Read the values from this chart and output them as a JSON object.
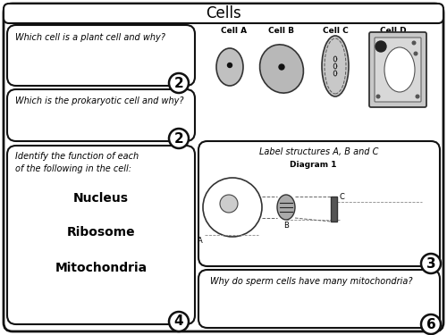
{
  "title": "Cells",
  "bg_color": "#ffffff",
  "box1_text": "Which cell is a plant cell and why?",
  "box2_text": "Which is the prokaryotic cell and why?",
  "box3_header": "Identify the function of each\nof the following in the cell:",
  "box3_items": [
    "Nucleus",
    "Ribosome",
    "Mitochondria"
  ],
  "box4_text": "Label structures A, B and C",
  "box5_text": "Why do sperm cells have many mitochondria?",
  "cell_labels": [
    "Cell A",
    "Cell B",
    "Cell C",
    "Cell D"
  ],
  "marks": [
    "2",
    "2",
    "4",
    "3",
    "6"
  ],
  "diagram_label": "Diagram 1"
}
